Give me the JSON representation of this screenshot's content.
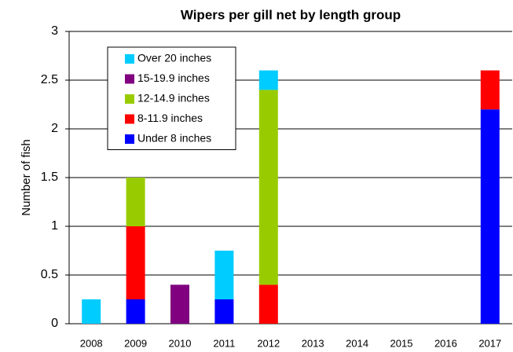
{
  "chart_data": {
    "type": "stacked_bar",
    "title": "Wipers per gill net by length group",
    "y_label": "Number of fish",
    "categories": [
      "2008",
      "2009",
      "2010",
      "2011",
      "2012",
      "2013",
      "2014",
      "2015",
      "2016",
      "2017"
    ],
    "series": [
      {
        "name": "Under 8 inches",
        "color": "#0000ff",
        "values": [
          0,
          0.25,
          0,
          0.25,
          0,
          0,
          0,
          0,
          0,
          2.2
        ]
      },
      {
        "name": "8-11.9 inches",
        "color": "#ff0000",
        "values": [
          0,
          0.75,
          0,
          0,
          0.4,
          0,
          0,
          0,
          0,
          0.4
        ]
      },
      {
        "name": "12-14.9 inches",
        "color": "#99cc00",
        "values": [
          0,
          0.5,
          0,
          0,
          2.0,
          0,
          0,
          0,
          0,
          0
        ]
      },
      {
        "name": "15-19.9 inches",
        "color": "#800080",
        "values": [
          0,
          0,
          0.4,
          0,
          0,
          0,
          0,
          0,
          0,
          0
        ]
      },
      {
        "name": "Over 20 inches",
        "color": "#00ccff",
        "values": [
          0.25,
          0,
          0,
          0.5,
          0.2,
          0,
          0,
          0,
          0,
          0
        ]
      }
    ],
    "ylim": [
      0,
      3
    ],
    "yticks": [
      0,
      0.5,
      1,
      1.5,
      2,
      2.5,
      3
    ],
    "grid": true,
    "legend": "upper left"
  }
}
